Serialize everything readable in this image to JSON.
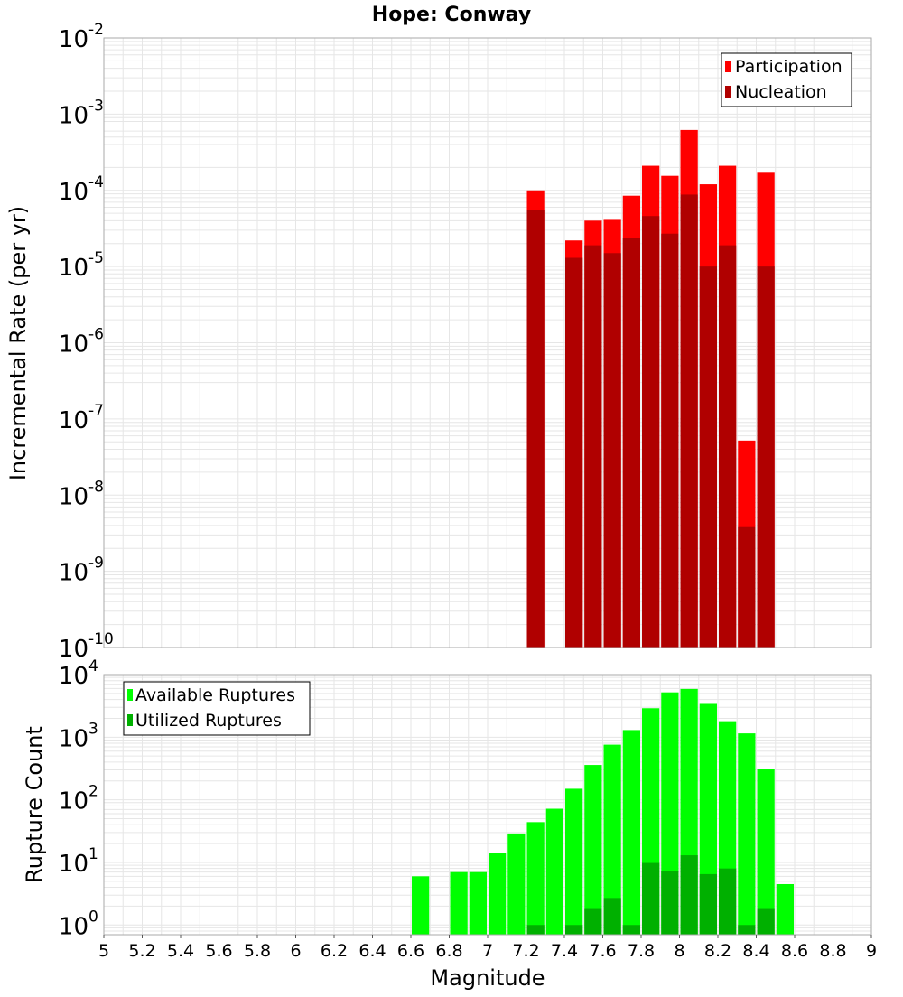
{
  "title": "Hope: Conway",
  "colors": {
    "participation": "#ff0000",
    "nucleation": "#b00000",
    "available": "#00ff00",
    "utilized": "#00b000",
    "grid": "#e6e6e6",
    "frame": "#aaaaaa"
  },
  "chart_data": [
    {
      "type": "bar",
      "title": "Hope: Conway",
      "xlabel": "Magnitude",
      "ylabel": "Incremental Rate (per yr)",
      "yscale": "log",
      "xlim": [
        5,
        9
      ],
      "ylim": [
        1e-10,
        0.01
      ],
      "grid": true,
      "legend_position": "top-right",
      "x": [
        7.25,
        7.35,
        7.45,
        7.55,
        7.65,
        7.75,
        7.85,
        7.95,
        8.05,
        8.15,
        8.25,
        8.35,
        8.45
      ],
      "series": [
        {
          "name": "Participation",
          "values": [
            0.0001,
            null,
            2.2e-05,
            4e-05,
            4.1e-05,
            8.5e-05,
            0.00021,
            0.000155,
            0.00062,
            0.00012,
            0.00021,
            5.2e-08,
            0.00017
          ]
        },
        {
          "name": "Nucleation",
          "values": [
            5.5e-05,
            null,
            1.3e-05,
            1.9e-05,
            1.5e-05,
            2.4e-05,
            4.6e-05,
            2.7e-05,
            8.8e-05,
            1e-05,
            1.9e-05,
            3.8e-09,
            1e-05
          ]
        }
      ],
      "y_ticks": [
        {
          "base": "10",
          "exp": "-10"
        },
        {
          "base": "10",
          "exp": "-9"
        },
        {
          "base": "10",
          "exp": "-8"
        },
        {
          "base": "10",
          "exp": "-7"
        },
        {
          "base": "10",
          "exp": "-6"
        },
        {
          "base": "10",
          "exp": "-5"
        },
        {
          "base": "10",
          "exp": "-4"
        },
        {
          "base": "10",
          "exp": "-3"
        },
        {
          "base": "10",
          "exp": "-2"
        }
      ]
    },
    {
      "type": "bar",
      "xlabel": "Magnitude",
      "ylabel": "Rupture Count",
      "yscale": "log",
      "xlim": [
        5,
        9
      ],
      "ylim": [
        0.7,
        10000
      ],
      "grid": true,
      "legend_position": "top-left",
      "x": [
        6.65,
        6.75,
        6.85,
        6.95,
        7.05,
        7.15,
        7.25,
        7.35,
        7.45,
        7.55,
        7.65,
        7.75,
        7.85,
        7.95,
        8.05,
        8.15,
        8.25,
        8.35,
        8.45,
        8.55
      ],
      "series": [
        {
          "name": "Available Ruptures",
          "values": [
            6,
            null,
            7,
            7,
            14,
            29,
            44,
            72,
            150,
            360,
            760,
            1300,
            2900,
            5200,
            5900,
            3400,
            1800,
            1150,
            310,
            4.5
          ]
        },
        {
          "name": "Utilized Ruptures",
          "values": [
            null,
            null,
            null,
            null,
            null,
            null,
            1,
            null,
            1,
            1.8,
            2.7,
            1,
            9.8,
            7.2,
            13,
            6.5,
            8,
            1,
            1.8,
            null
          ]
        }
      ],
      "y_ticks": [
        {
          "base": "10",
          "exp": "0"
        },
        {
          "base": "10",
          "exp": "1"
        },
        {
          "base": "10",
          "exp": "2"
        },
        {
          "base": "10",
          "exp": "3"
        },
        {
          "base": "10",
          "exp": "4"
        }
      ],
      "x_ticks": [
        "5",
        "5.2",
        "5.4",
        "5.6",
        "5.8",
        "6",
        "6.2",
        "6.4",
        "6.6",
        "6.8",
        "7",
        "7.2",
        "7.4",
        "7.6",
        "7.8",
        "8",
        "8.2",
        "8.4",
        "8.6",
        "8.8",
        "9"
      ]
    }
  ]
}
